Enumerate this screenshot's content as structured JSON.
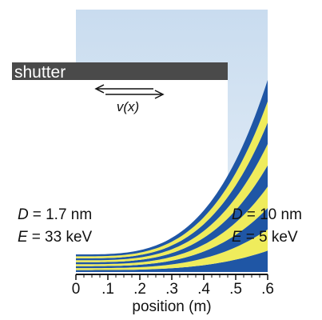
{
  "shutter": "shutter",
  "velocity": "v(x)",
  "left_params": [
    {
      "symbol": "D",
      "text": "= 1.7 nm"
    },
    {
      "symbol": "E",
      "text": "= 33 keV"
    }
  ],
  "right_params": [
    {
      "symbol": "D",
      "text": "= 10 nm"
    },
    {
      "symbol": "E",
      "text": "= 5 keV"
    }
  ],
  "axis": {
    "label": "position (m)",
    "range": [
      0,
      0.6
    ],
    "ticks": [
      {
        "value": 0,
        "label": "0"
      },
      {
        "value": 0.1,
        "label": ".1"
      },
      {
        "value": 0.2,
        "label": ".2"
      },
      {
        "value": 0.3,
        "label": ".3"
      },
      {
        "value": 0.4,
        "label": ".4"
      },
      {
        "value": 0.5,
        "label": ".5"
      },
      {
        "value": 0.6,
        "label": ".6"
      }
    ]
  }
}
